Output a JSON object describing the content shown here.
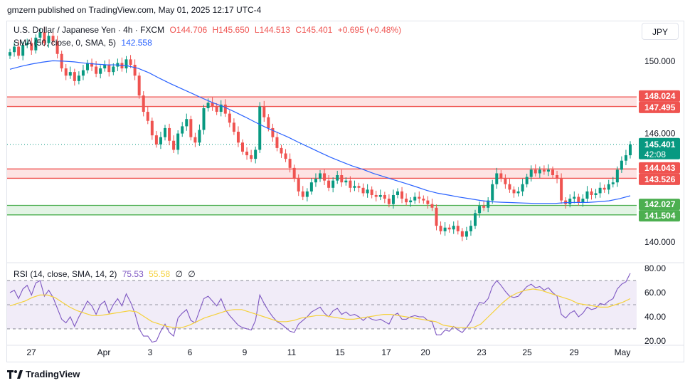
{
  "publisher_line": "gmzern published on TradingView.com, May 01, 2025 12:17 UTC-4",
  "legend": {
    "symbol": "U.S. Dollar / Japanese Yen · 4h · FXCM",
    "open": "O144.706",
    "high": "H145.650",
    "low": "L144.513",
    "close": "C145.401",
    "change": "+0.695 (+0.48%)",
    "sma_label": "SMA (50, close, 0, SMA, 5)",
    "sma_value": "142.558",
    "rsi_label": "RSI (14, close, SMA, 14, 2)",
    "rsi_value": "75.53",
    "rsi_ma_value": "55.58",
    "rsi_extra1": "∅",
    "rsi_extra2": "∅"
  },
  "currency_button": "JPY",
  "footer": {
    "brand": "TradingView"
  },
  "colors": {
    "up": "#089981",
    "down": "#ef5350",
    "sma": "#2962ff",
    "rsi": "#7e57c2",
    "rsi_ma": "#f5d13b",
    "resistance_fill": "#fde3e3",
    "resistance_line": "#ef5350",
    "support_fill": "#e3f4e5",
    "support_line": "#4caf50"
  },
  "chart_data": [
    {
      "type": "candlestick",
      "title": "U.S. Dollar / Japanese Yen · 4h · FXCM",
      "ylim": [
        138.9,
        152.2
      ],
      "y_ticks": [
        "150.000",
        "146.000",
        "140.000"
      ],
      "x_ticks": [
        "27",
        "Apr",
        "3",
        "6",
        "9",
        "11",
        "15",
        "17",
        "20",
        "23",
        "25",
        "29",
        "May"
      ],
      "zones": [
        {
          "kind": "resistance",
          "top": 148.024,
          "bottom": 147.495,
          "top_label": "148.024",
          "bottom_label": "147.495"
        },
        {
          "kind": "resistance",
          "top": 144.043,
          "bottom": 143.526,
          "top_label": "144.043",
          "bottom_label": "143.526"
        },
        {
          "kind": "support",
          "top": 142.027,
          "bottom": 141.504,
          "top_label": "142.027",
          "bottom_label": "141.504"
        }
      ],
      "last_price": {
        "value": 145.401,
        "label": "145.401",
        "countdown": "42:08"
      },
      "close_series": [
        150.5,
        150.8,
        150.3,
        150.9,
        151.0,
        150.6,
        151.3,
        151.6,
        151.0,
        151.4,
        151.1,
        150.4,
        149.6,
        149.2,
        149.4,
        148.9,
        149.2,
        149.5,
        149.9,
        149.7,
        149.3,
        149.6,
        149.8,
        149.4,
        149.7,
        149.9,
        149.6,
        150.1,
        149.8,
        149.2,
        148.1,
        147.2,
        146.7,
        145.9,
        145.4,
        145.8,
        146.3,
        145.6,
        145.1,
        146.0,
        146.4,
        146.8,
        145.8,
        145.5,
        146.2,
        147.4,
        147.7,
        147.5,
        147.2,
        147.6,
        147.1,
        146.6,
        146.1,
        145.5,
        145.0,
        144.8,
        144.6,
        145.1,
        147.5,
        146.9,
        146.3,
        145.8,
        145.2,
        144.9,
        144.6,
        144.1,
        143.5,
        142.8,
        142.5,
        142.8,
        143.3,
        143.5,
        143.8,
        143.4,
        143.0,
        143.4,
        143.7,
        143.3,
        143.4,
        143.0,
        143.1,
        143.0,
        142.7,
        142.9,
        142.6,
        142.5,
        142.6,
        142.4,
        142.1,
        142.6,
        142.8,
        142.4,
        142.2,
        142.3,
        142.5,
        142.4,
        142.3,
        142.1,
        141.9,
        140.9,
        140.6,
        140.8,
        140.7,
        140.9,
        140.6,
        140.3,
        140.6,
        140.9,
        141.6,
        142.0,
        141.9,
        142.3,
        143.2,
        143.8,
        143.5,
        143.2,
        142.9,
        142.7,
        142.8,
        143.2,
        143.6,
        144.0,
        143.8,
        144.0,
        143.9,
        144.0,
        143.7,
        143.5,
        142.3,
        142.1,
        142.4,
        142.5,
        142.2,
        142.4,
        142.8,
        142.6,
        142.7,
        143.0,
        142.9,
        143.2,
        143.3,
        144.0,
        144.5,
        144.8,
        145.4
      ],
      "sma_series": [
        149.55,
        149.71,
        149.84,
        149.94,
        150.02,
        150.0,
        149.96,
        149.89,
        149.84,
        149.8,
        149.79,
        149.74,
        149.6,
        149.36,
        149.05,
        148.76,
        148.49,
        148.22,
        147.95,
        147.7,
        147.48,
        147.2,
        146.91,
        146.61,
        146.32,
        146.06,
        145.8,
        145.51,
        145.23,
        144.95,
        144.68,
        144.44,
        144.21,
        144.02,
        143.79,
        143.61,
        143.42,
        143.24,
        143.05,
        142.85,
        142.7,
        142.6,
        142.49,
        142.4,
        142.3,
        142.23,
        142.2,
        142.18,
        142.16,
        142.14,
        142.14,
        142.14,
        142.18,
        142.19,
        142.19,
        142.23,
        142.28,
        142.4,
        142.56
      ]
    },
    {
      "type": "line",
      "title": "RSI (14, close, SMA, 14, 2)",
      "ylim": [
        17.0,
        83.0
      ],
      "y_ticks": [
        "80.00",
        "60.00",
        "40.00",
        "20.00"
      ],
      "bands": [
        30,
        50,
        70
      ],
      "series": [
        {
          "values": [
            60,
            62,
            55,
            63,
            66,
            58,
            68,
            70,
            57,
            62,
            56,
            47,
            38,
            35,
            40,
            32,
            40,
            46,
            53,
            49,
            42,
            50,
            53,
            43,
            50,
            55,
            49,
            59,
            52,
            43,
            30,
            24,
            24,
            19,
            20,
            28,
            34,
            27,
            24,
            39,
            43,
            46,
            37,
            35,
            45,
            55,
            57,
            53,
            49,
            55,
            46,
            41,
            37,
            33,
            31,
            30,
            29,
            37,
            58,
            51,
            45,
            40,
            36,
            34,
            31,
            28,
            27,
            34,
            37,
            40,
            44,
            46,
            48,
            43,
            40,
            45,
            47,
            42,
            44,
            41,
            42,
            40,
            37,
            40,
            38,
            37,
            38,
            36,
            34,
            41,
            43,
            38,
            38,
            40,
            41,
            40,
            40,
            37,
            36,
            25,
            25,
            29,
            28,
            32,
            29,
            27,
            31,
            36,
            45,
            52,
            51,
            55,
            65,
            70,
            66,
            61,
            57,
            56,
            57,
            61,
            65,
            67,
            64,
            65,
            62,
            64,
            60,
            57,
            42,
            39,
            43,
            45,
            40,
            43,
            48,
            46,
            47,
            51,
            50,
            53,
            55,
            63,
            67,
            69,
            76
          ]
        },
        {
          "values": [
            49,
            51,
            53,
            56,
            58,
            58,
            56,
            52,
            48,
            45,
            43,
            41,
            41,
            42,
            43,
            44,
            45,
            44,
            40,
            36,
            34,
            32,
            31,
            31,
            33,
            36,
            39,
            41,
            43,
            45,
            46,
            46,
            44,
            42,
            40,
            38,
            36,
            36,
            37,
            39,
            40,
            41,
            41,
            40,
            39,
            38,
            38,
            39,
            40,
            41,
            42,
            42,
            41,
            40,
            39,
            38,
            37,
            36,
            33,
            32,
            31,
            31,
            31,
            34,
            40,
            46,
            52,
            57,
            60,
            62,
            63,
            62,
            60,
            58,
            56,
            54,
            51,
            50,
            49,
            48,
            48,
            50,
            52,
            55
          ]
        }
      ]
    }
  ]
}
